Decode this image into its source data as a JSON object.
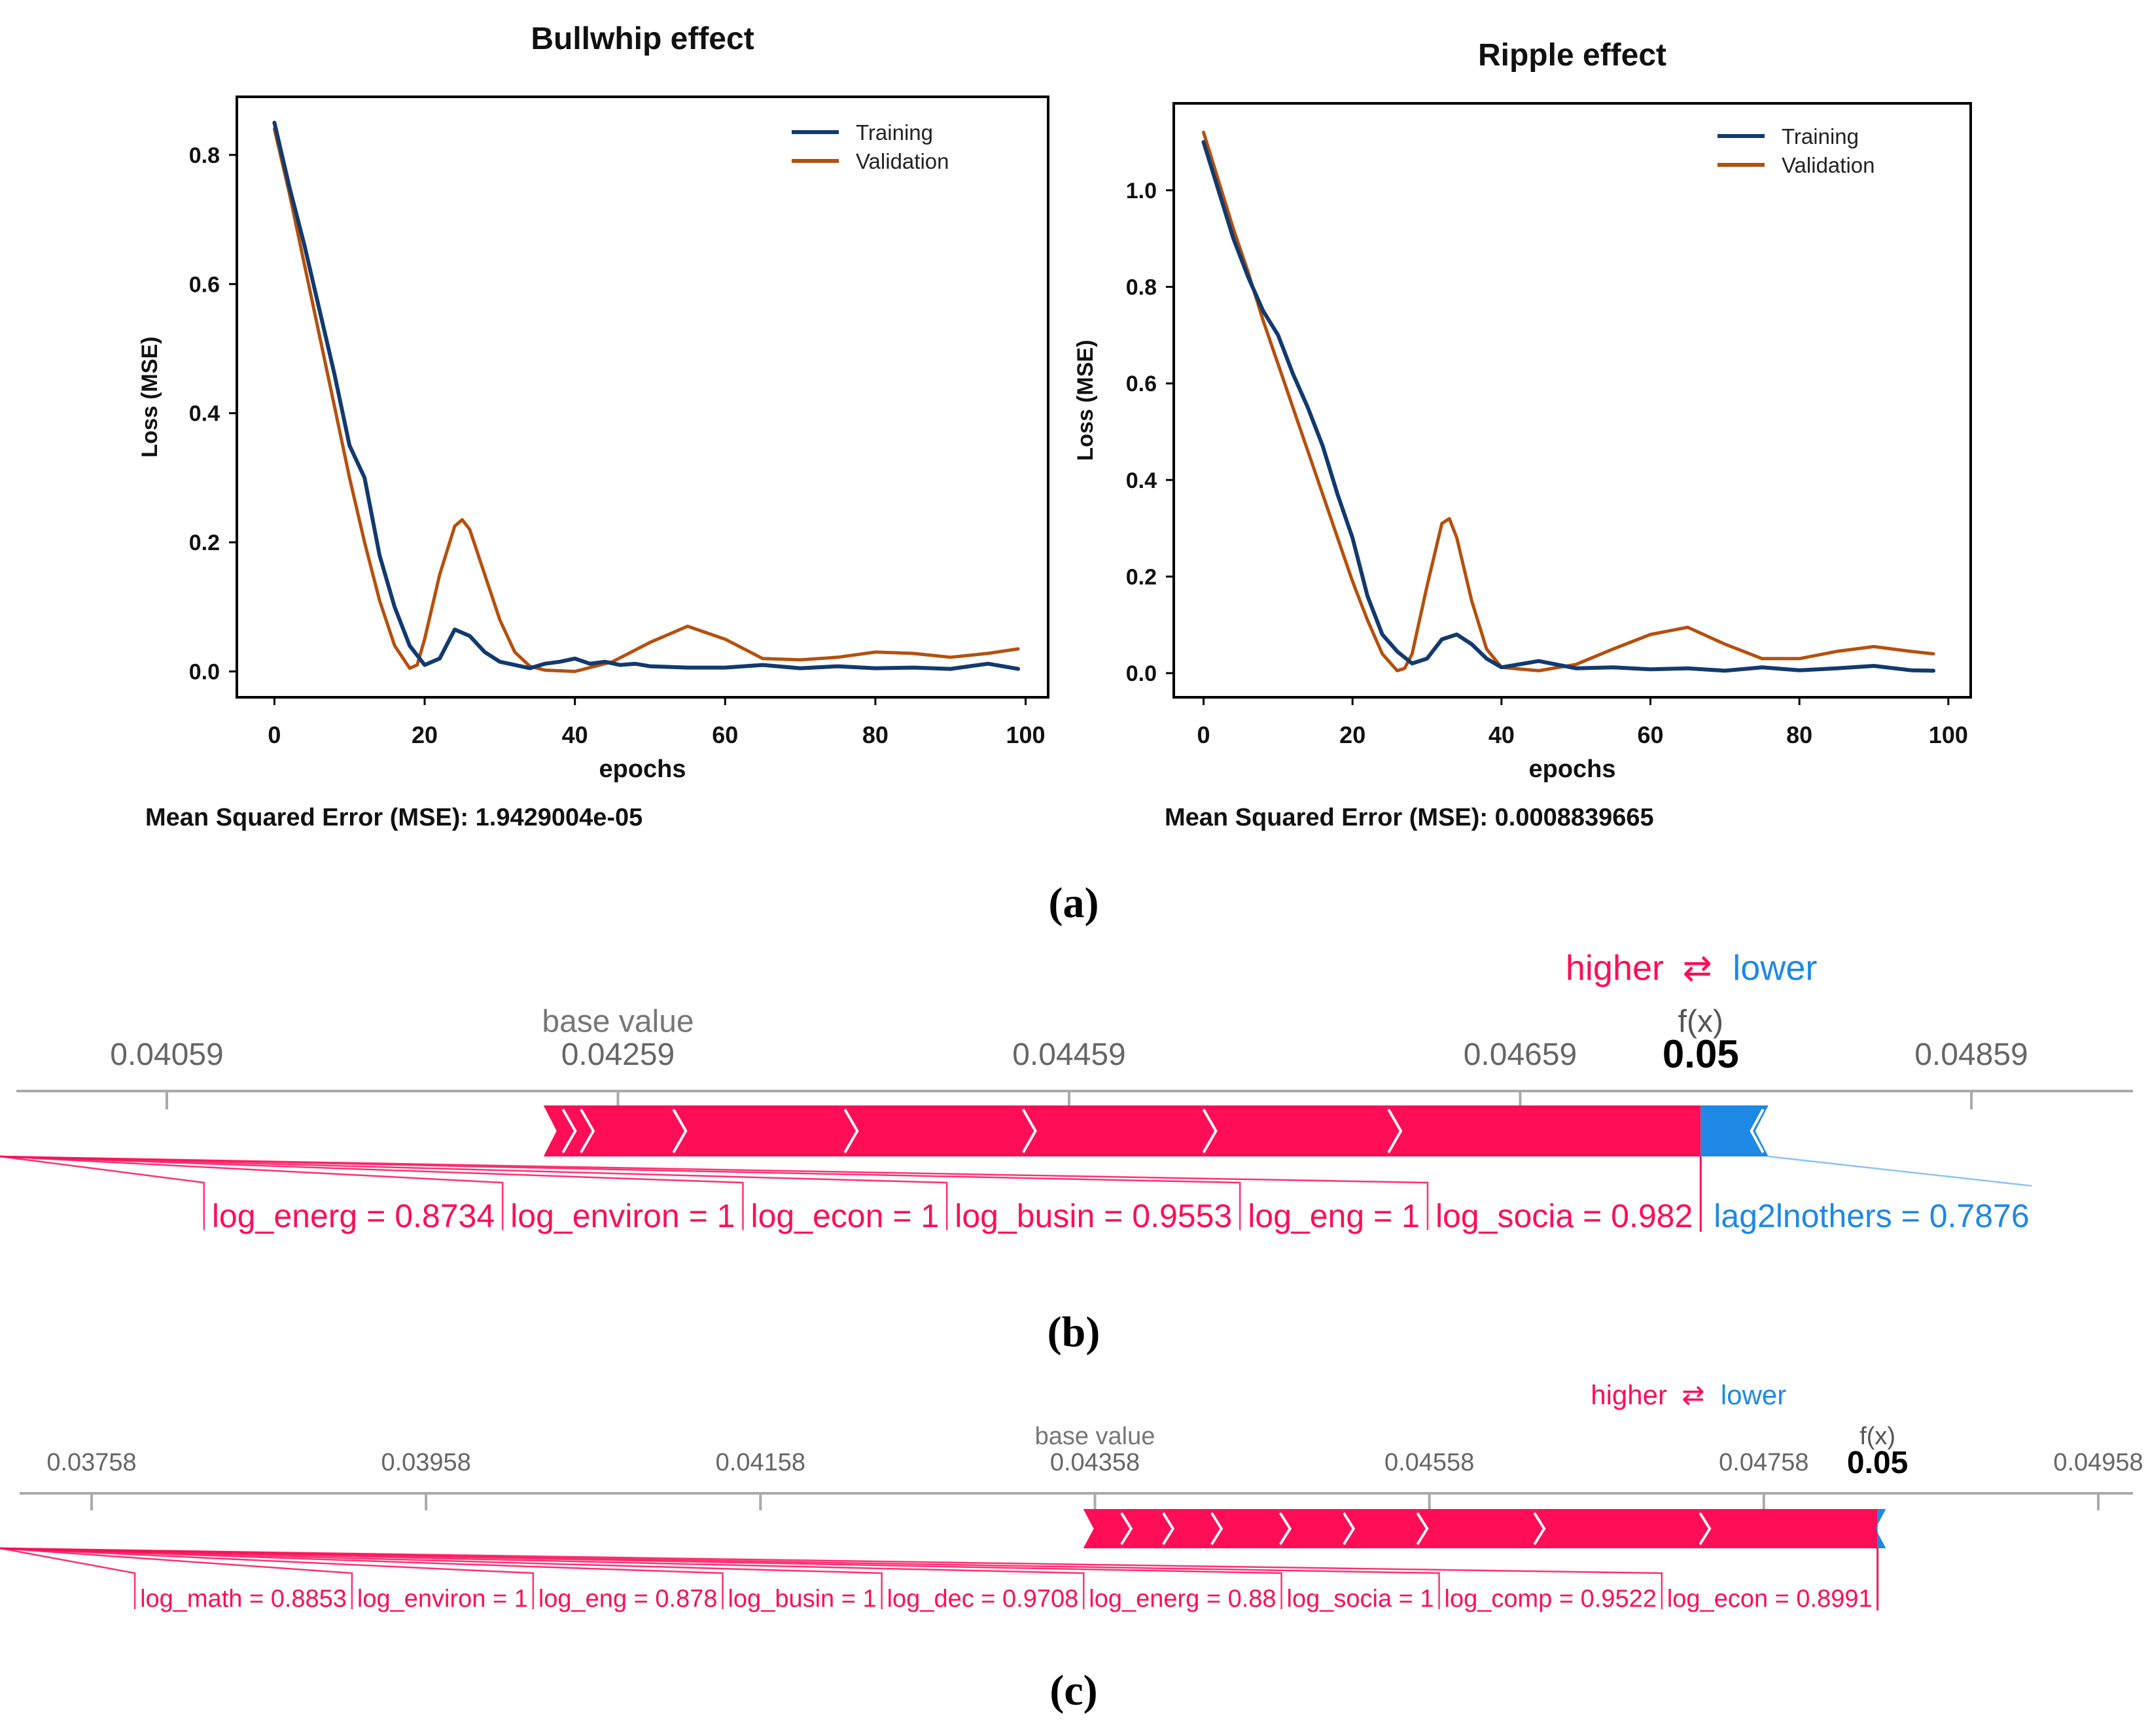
{
  "panel_labels": {
    "a": "(a)",
    "b": "(b)",
    "c": "(c)"
  },
  "colors": {
    "training": "#123a6e",
    "validation": "#b5500d",
    "higher": "#ff0d57",
    "lower": "#1e88e5",
    "axis_text": "#666666",
    "frame": "#000000"
  },
  "chart_data": [
    {
      "id": "bullwhip",
      "type": "line",
      "title": "Bullwhip effect",
      "xlabel": "epochs",
      "ylabel": "Loss (MSE)",
      "xlim": [
        -5,
        103
      ],
      "ylim": [
        -0.04,
        0.89
      ],
      "xticks": [
        0,
        20,
        40,
        60,
        80,
        100
      ],
      "xtick_labels": [
        "0",
        "20",
        "40",
        "60",
        "80",
        "100"
      ],
      "yticks": [
        0.0,
        0.2,
        0.4,
        0.6,
        0.8
      ],
      "ytick_labels": [
        "0.0",
        "0.2",
        "0.4",
        "0.6",
        "0.8"
      ],
      "legend_position": "top-right",
      "mse_text": "Mean Squared Error (MSE): 1.9429004e-05",
      "series": [
        {
          "name": "Training",
          "x": [
            0,
            2,
            4,
            6,
            8,
            10,
            12,
            14,
            16,
            18,
            20,
            22,
            24,
            26,
            28,
            30,
            32,
            34,
            36,
            38,
            40,
            42,
            44,
            46,
            48,
            50,
            55,
            60,
            65,
            70,
            75,
            80,
            85,
            90,
            95,
            99
          ],
          "values": [
            0.85,
            0.75,
            0.66,
            0.56,
            0.46,
            0.35,
            0.3,
            0.18,
            0.1,
            0.04,
            0.01,
            0.02,
            0.065,
            0.055,
            0.03,
            0.015,
            0.01,
            0.005,
            0.012,
            0.015,
            0.02,
            0.012,
            0.015,
            0.01,
            0.012,
            0.008,
            0.006,
            0.006,
            0.01,
            0.005,
            0.008,
            0.005,
            0.006,
            0.004,
            0.012,
            0.004
          ]
        },
        {
          "name": "Validation",
          "x": [
            0,
            2,
            4,
            6,
            8,
            10,
            12,
            14,
            16,
            18,
            19,
            20,
            22,
            24,
            25,
            26,
            28,
            30,
            32,
            34,
            36,
            40,
            45,
            50,
            55,
            60,
            65,
            70,
            75,
            80,
            85,
            90,
            95,
            99
          ],
          "values": [
            0.84,
            0.74,
            0.63,
            0.52,
            0.41,
            0.3,
            0.2,
            0.11,
            0.04,
            0.005,
            0.01,
            0.05,
            0.15,
            0.225,
            0.235,
            0.22,
            0.15,
            0.08,
            0.03,
            0.008,
            0.002,
            0.0,
            0.015,
            0.045,
            0.07,
            0.05,
            0.02,
            0.018,
            0.022,
            0.03,
            0.028,
            0.022,
            0.028,
            0.035
          ]
        }
      ]
    },
    {
      "id": "ripple",
      "type": "line",
      "title": "Ripple effect",
      "xlabel": "epochs",
      "ylabel": "Loss (MSE)",
      "xlim": [
        -4,
        103
      ],
      "ylim": [
        -0.05,
        1.18
      ],
      "xticks": [
        0,
        20,
        40,
        60,
        80,
        100
      ],
      "xtick_labels": [
        "0",
        "20",
        "40",
        "60",
        "80",
        "100"
      ],
      "yticks": [
        0.0,
        0.2,
        0.4,
        0.6,
        0.8,
        1.0
      ],
      "ytick_labels": [
        "0.0",
        "0.2",
        "0.4",
        "0.6",
        "0.8",
        "1.0"
      ],
      "legend_position": "top-right",
      "mse_text": "Mean Squared Error (MSE): 0.0008839665",
      "series": [
        {
          "name": "Training",
          "x": [
            0,
            2,
            4,
            6,
            8,
            10,
            12,
            14,
            16,
            18,
            20,
            22,
            24,
            26,
            28,
            30,
            32,
            34,
            36,
            38,
            40,
            45,
            50,
            55,
            60,
            65,
            70,
            75,
            80,
            85,
            90,
            95,
            98
          ],
          "values": [
            1.1,
            1.0,
            0.9,
            0.82,
            0.75,
            0.7,
            0.62,
            0.55,
            0.47,
            0.37,
            0.28,
            0.16,
            0.08,
            0.045,
            0.02,
            0.03,
            0.07,
            0.08,
            0.06,
            0.03,
            0.012,
            0.025,
            0.01,
            0.012,
            0.008,
            0.01,
            0.005,
            0.012,
            0.006,
            0.01,
            0.015,
            0.006,
            0.005
          ]
        },
        {
          "name": "Validation",
          "x": [
            0,
            2,
            4,
            6,
            8,
            10,
            12,
            14,
            16,
            18,
            20,
            22,
            24,
            26,
            27,
            28,
            30,
            32,
            33,
            34,
            36,
            38,
            40,
            45,
            50,
            55,
            60,
            65,
            70,
            75,
            80,
            85,
            90,
            95,
            98
          ],
          "values": [
            1.12,
            1.02,
            0.92,
            0.83,
            0.73,
            0.64,
            0.55,
            0.46,
            0.37,
            0.28,
            0.19,
            0.11,
            0.04,
            0.005,
            0.01,
            0.04,
            0.18,
            0.31,
            0.32,
            0.28,
            0.15,
            0.05,
            0.012,
            0.005,
            0.018,
            0.05,
            0.08,
            0.095,
            0.06,
            0.03,
            0.03,
            0.045,
            0.055,
            0.045,
            0.04
          ]
        }
      ]
    },
    {
      "id": "shap_b",
      "type": "bar",
      "subtype": "force",
      "higher_label": "higher",
      "lower_label": "lower",
      "swap_symbol": "⇄",
      "base_value_label": "base value",
      "base_value": 0.04259,
      "fx_label": "f(x)",
      "fx_value_label": "0.05",
      "fx_value": 0.04739,
      "axis_ticks": [
        0.04059,
        0.04259,
        0.04459,
        0.04659,
        0.04859
      ],
      "axis_tick_labels": [
        "0.04059",
        "0.04259",
        "0.04459",
        "0.04659",
        "0.04859"
      ],
      "bar_range": [
        0.04226,
        0.04769
      ],
      "positive_breaks": [
        0.04226,
        0.04234,
        0.04242,
        0.04283,
        0.04359,
        0.04438,
        0.04518,
        0.046,
        0.04739
      ],
      "negative_segment": [
        0.04739,
        0.04769
      ],
      "features": [
        {
          "label": "log_energ = 0.8734",
          "effect": "positive"
        },
        {
          "label": "log_environ = 1",
          "effect": "positive"
        },
        {
          "label": "log_econ = 1",
          "effect": "positive"
        },
        {
          "label": "log_busin = 0.9553",
          "effect": "positive"
        },
        {
          "label": "log_eng = 1",
          "effect": "positive"
        },
        {
          "label": "log_socia = 0.982",
          "effect": "positive"
        },
        {
          "label": "lag2lnothers = 0.7876",
          "effect": "negative"
        }
      ]
    },
    {
      "id": "shap_c",
      "type": "bar",
      "subtype": "force",
      "higher_label": "higher",
      "lower_label": "lower",
      "swap_symbol": "⇄",
      "base_value_label": "base value",
      "base_value": 0.04358,
      "fx_label": "f(x)",
      "fx_value_label": "0.05",
      "fx_value": 0.04826,
      "axis_ticks": [
        0.03758,
        0.03958,
        0.04158,
        0.04358,
        0.04558,
        0.04758,
        0.04958
      ],
      "axis_tick_labels": [
        "0.03758",
        "0.03958",
        "0.04158",
        "0.04358",
        "0.04558",
        "0.04758",
        "0.04958"
      ],
      "bar_range": [
        0.04351,
        0.04831
      ],
      "positive_breaks": [
        0.04351,
        0.04373,
        0.04398,
        0.04427,
        0.04468,
        0.04506,
        0.0455,
        0.0462,
        0.04719,
        0.04826
      ],
      "negative_segment": [
        0.04826,
        0.04831
      ],
      "features": [
        {
          "label": "log_math = 0.8853",
          "effect": "positive"
        },
        {
          "label": "log_environ = 1",
          "effect": "positive"
        },
        {
          "label": "log_eng = 0.878",
          "effect": "positive"
        },
        {
          "label": "log_busin = 1",
          "effect": "positive"
        },
        {
          "label": "log_dec = 0.9708",
          "effect": "positive"
        },
        {
          "label": "log_energ = 0.88",
          "effect": "positive"
        },
        {
          "label": "log_socia = 1",
          "effect": "positive"
        },
        {
          "label": "log_comp = 0.9522",
          "effect": "positive"
        },
        {
          "label": "log_econ = 0.8991",
          "effect": "positive"
        }
      ]
    }
  ]
}
